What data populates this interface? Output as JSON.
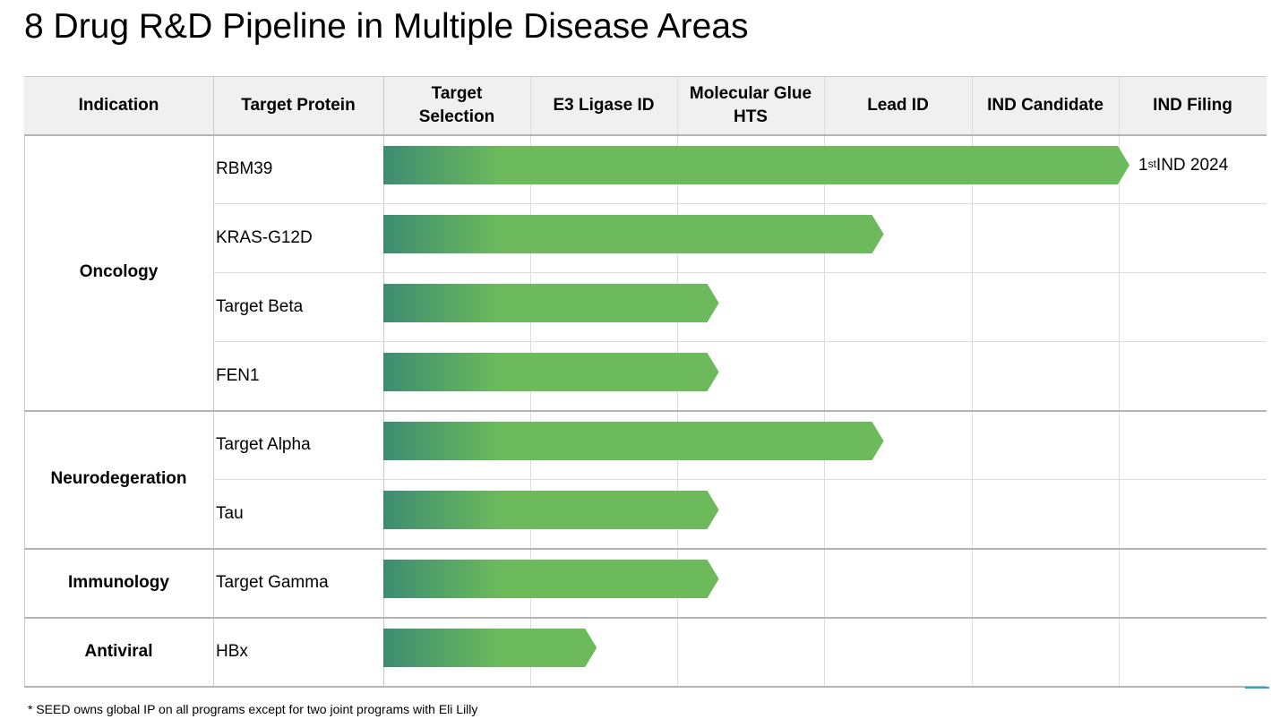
{
  "title": "8 Drug R&D Pipeline in Multiple Disease Areas",
  "columns": [
    "Indication",
    "Target Protein",
    "Target\nSelection",
    "E3 Ligase ID",
    "Molecular Glue\nHTS",
    "Lead ID",
    "IND Candidate",
    "IND Filing"
  ],
  "stages": [
    "Target Selection",
    "E3 Ligase ID",
    "Molecular Glue HTS",
    "Lead ID",
    "IND Candidate",
    "IND Filing"
  ],
  "indications": [
    {
      "name": "Oncology",
      "rows": 4
    },
    {
      "name": "Neurodegeration",
      "rows": 2
    },
    {
      "name": "Immunology",
      "rows": 1
    },
    {
      "name": "Antiviral",
      "rows": 1
    }
  ],
  "programs": [
    {
      "target": "RBM39",
      "indication": "Oncology",
      "progress_stages": 5.07,
      "label_main": "1",
      "label_sup": "st",
      "label_rest": " IND 2024"
    },
    {
      "target": "KRAS-G12D",
      "indication": "Oncology",
      "progress_stages": 3.4
    },
    {
      "target": "Target Beta",
      "indication": "Oncology",
      "progress_stages": 2.28
    },
    {
      "target": "FEN1",
      "indication": "Oncology",
      "progress_stages": 2.28
    },
    {
      "target": "Target Alpha",
      "indication": "Neurodegeration",
      "progress_stages": 3.4
    },
    {
      "target": "Tau",
      "indication": "Neurodegeration",
      "progress_stages": 2.28
    },
    {
      "target": "Target Gamma",
      "indication": "Immunology",
      "progress_stages": 2.28
    },
    {
      "target": "HBx",
      "indication": "Antiviral",
      "progress_stages": 1.45
    }
  ],
  "colors": {
    "bar_start": "#3d8c72",
    "bar_end": "#6cba5c",
    "header_bg": "#f0f0f0"
  },
  "footnote": "* SEED owns global IP on all programs except for two joint programs with Eli Lilly"
}
